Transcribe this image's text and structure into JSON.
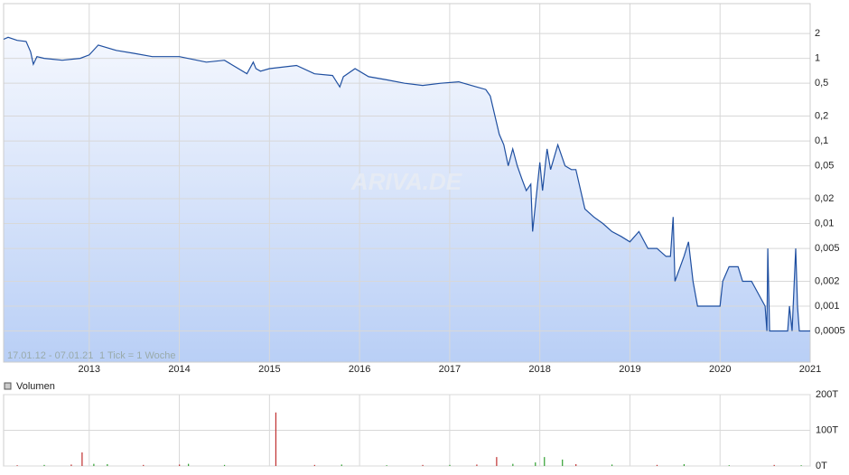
{
  "chart_data": [
    {
      "type": "line",
      "log_scale": true,
      "grid": true,
      "color": "#1f4fa0",
      "note_range": "17.01.12 - 07.01.21",
      "note_tick": "1 Tick = 1 Woche",
      "watermark": "ARIVA.DE",
      "xlim": [
        2012.05,
        2021.0
      ],
      "xticks": [
        2013,
        2014,
        2015,
        2016,
        2017,
        2018,
        2019,
        2020,
        2021
      ],
      "ylim": [
        0.00021,
        4.6
      ],
      "yticks": [
        2,
        1,
        {
          "value": 0.5,
          "label": "0,5"
        },
        {
          "value": 0.2,
          "label": "0,2"
        },
        {
          "value": 0.1,
          "label": "0,1"
        },
        {
          "value": 0.05,
          "label": "0,05"
        },
        {
          "value": 0.02,
          "label": "0,02"
        },
        {
          "value": 0.01,
          "label": "0,01"
        },
        {
          "value": 0.005,
          "label": "0,005"
        },
        {
          "value": 0.002,
          "label": "0,002"
        },
        {
          "value": 0.001,
          "label": "0,001"
        },
        {
          "value": 0.0005,
          "label": "0,0005"
        }
      ],
      "x": [
        2012.05,
        2012.1,
        2012.2,
        2012.3,
        2012.35,
        2012.38,
        2012.42,
        2012.5,
        2012.7,
        2012.9,
        2013.0,
        2013.1,
        2013.3,
        2013.5,
        2013.7,
        2014.0,
        2014.3,
        2014.5,
        2014.75,
        2014.82,
        2014.85,
        2014.9,
        2015.0,
        2015.3,
        2015.5,
        2015.7,
        2015.78,
        2015.82,
        2015.95,
        2016.1,
        2016.3,
        2016.5,
        2016.7,
        2016.9,
        2017.1,
        2017.3,
        2017.4,
        2017.45,
        2017.55,
        2017.6,
        2017.65,
        2017.7,
        2017.75,
        2017.8,
        2017.85,
        2017.9,
        2017.92,
        2018.0,
        2018.03,
        2018.08,
        2018.12,
        2018.2,
        2018.28,
        2018.35,
        2018.4,
        2018.5,
        2018.6,
        2018.7,
        2018.8,
        2018.9,
        2019.0,
        2019.1,
        2019.2,
        2019.3,
        2019.4,
        2019.45,
        2019.48,
        2019.5,
        2019.6,
        2019.65,
        2019.7,
        2019.75,
        2020.0,
        2020.03,
        2020.1,
        2020.2,
        2020.25,
        2020.35,
        2020.5,
        2020.52,
        2020.53,
        2020.55,
        2020.75,
        2020.77,
        2020.8,
        2020.84,
        2020.86,
        2020.88,
        2020.9,
        2020.92,
        2021.0
      ],
      "values": [
        1.7,
        1.8,
        1.65,
        1.6,
        1.2,
        0.85,
        1.05,
        1.0,
        0.95,
        1.0,
        1.1,
        1.45,
        1.25,
        1.15,
        1.05,
        1.05,
        0.9,
        0.95,
        0.65,
        0.9,
        0.75,
        0.7,
        0.75,
        0.82,
        0.65,
        0.62,
        0.45,
        0.6,
        0.75,
        0.6,
        0.55,
        0.5,
        0.47,
        0.5,
        0.52,
        0.45,
        0.42,
        0.35,
        0.12,
        0.09,
        0.05,
        0.08,
        0.05,
        0.035,
        0.025,
        0.03,
        0.008,
        0.055,
        0.025,
        0.08,
        0.045,
        0.09,
        0.05,
        0.045,
        0.045,
        0.015,
        0.012,
        0.01,
        0.008,
        0.007,
        0.006,
        0.008,
        0.005,
        0.005,
        0.004,
        0.004,
        0.012,
        0.002,
        0.004,
        0.006,
        0.002,
        0.001,
        0.001,
        0.002,
        0.003,
        0.003,
        0.002,
        0.002,
        0.001,
        0.0005,
        0.005,
        0.0005,
        0.0005,
        0.001,
        0.0005,
        0.005,
        0.001,
        0.0005,
        0.0005,
        0.0005,
        0.0005
      ]
    },
    {
      "type": "bar",
      "legend": "Volumen",
      "grid": true,
      "xlim": [
        2012.05,
        2021.0
      ],
      "ylim": [
        0,
        200
      ],
      "yticks": [
        {
          "value": 0,
          "label": "0T"
        },
        {
          "value": 100,
          "label": "100T"
        },
        {
          "value": 200,
          "label": "200T"
        }
      ],
      "x": [
        2012.2,
        2012.5,
        2012.8,
        2012.92,
        2013.05,
        2013.2,
        2013.6,
        2014.0,
        2014.1,
        2014.5,
        2015.07,
        2015.5,
        2015.8,
        2016.3,
        2016.7,
        2017.0,
        2017.3,
        2017.52,
        2017.7,
        2017.95,
        2018.05,
        2018.25,
        2018.4,
        2018.8,
        2019.3,
        2019.6,
        2020.1,
        2020.6,
        2020.9
      ],
      "values": [
        2,
        3,
        4,
        38,
        6,
        5,
        3,
        4,
        6,
        3,
        150,
        3,
        4,
        2,
        3,
        3,
        4,
        25,
        6,
        10,
        25,
        18,
        5,
        4,
        3,
        5,
        2,
        3,
        2
      ],
      "colors": [
        "#c03030",
        "#30a030",
        "#c03030",
        "#c03030",
        "#30a030",
        "#30a030",
        "#c03030",
        "#c03030",
        "#30a030",
        "#30a030",
        "#c03030",
        "#c03030",
        "#30a030",
        "#30a030",
        "#c03030",
        "#30a030",
        "#c03030",
        "#c03030",
        "#30a030",
        "#30a030",
        "#30a030",
        "#30a030",
        "#c03030",
        "#30a030",
        "#c03030",
        "#30a030",
        "#30a030",
        "#c03030",
        "#30a030"
      ]
    }
  ]
}
